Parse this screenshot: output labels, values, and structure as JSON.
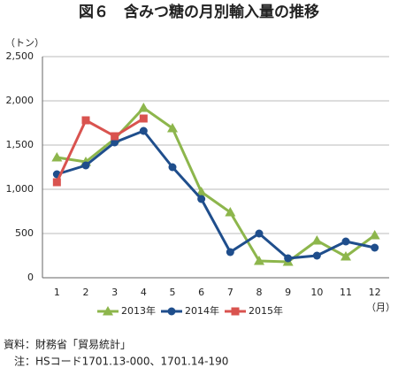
{
  "chart_data": {
    "type": "line",
    "title": "図６　含みつ糖の月別輸入量の推移",
    "y_label": "（トン）",
    "x_label": "（月）",
    "categories": [
      "1",
      "2",
      "3",
      "4",
      "5",
      "6",
      "7",
      "8",
      "9",
      "10",
      "11",
      "12"
    ],
    "series": [
      {
        "name": "2013年",
        "color": "#8db64c",
        "marker": "triangle",
        "values": [
          1360,
          1310,
          1570,
          1920,
          1690,
          970,
          740,
          190,
          180,
          420,
          240,
          480
        ]
      },
      {
        "name": "2014年",
        "color": "#1f4e8c",
        "marker": "circle",
        "values": [
          1170,
          1270,
          1530,
          1660,
          1250,
          890,
          290,
          500,
          220,
          250,
          410,
          340
        ]
      },
      {
        "name": "2015年",
        "color": "#d9534f",
        "marker": "square",
        "values": [
          1080,
          1780,
          1600,
          1800,
          null,
          null,
          null,
          null,
          null,
          null,
          null,
          null
        ]
      }
    ],
    "ylim": [
      0,
      2500
    ],
    "yticks": [
      0,
      500,
      {
        "value": 1000,
        "label": "1,000"
      },
      {
        "value": 1500,
        "label": "1,500"
      },
      {
        "value": 2000,
        "label": "2,000"
      },
      {
        "value": 2500,
        "label": "2,500"
      }
    ],
    "grid": true,
    "legend": "bottom",
    "source": "資料：財務省「貿易統計」",
    "note": "注：HSコード1701.13-000、1701.14-190"
  }
}
